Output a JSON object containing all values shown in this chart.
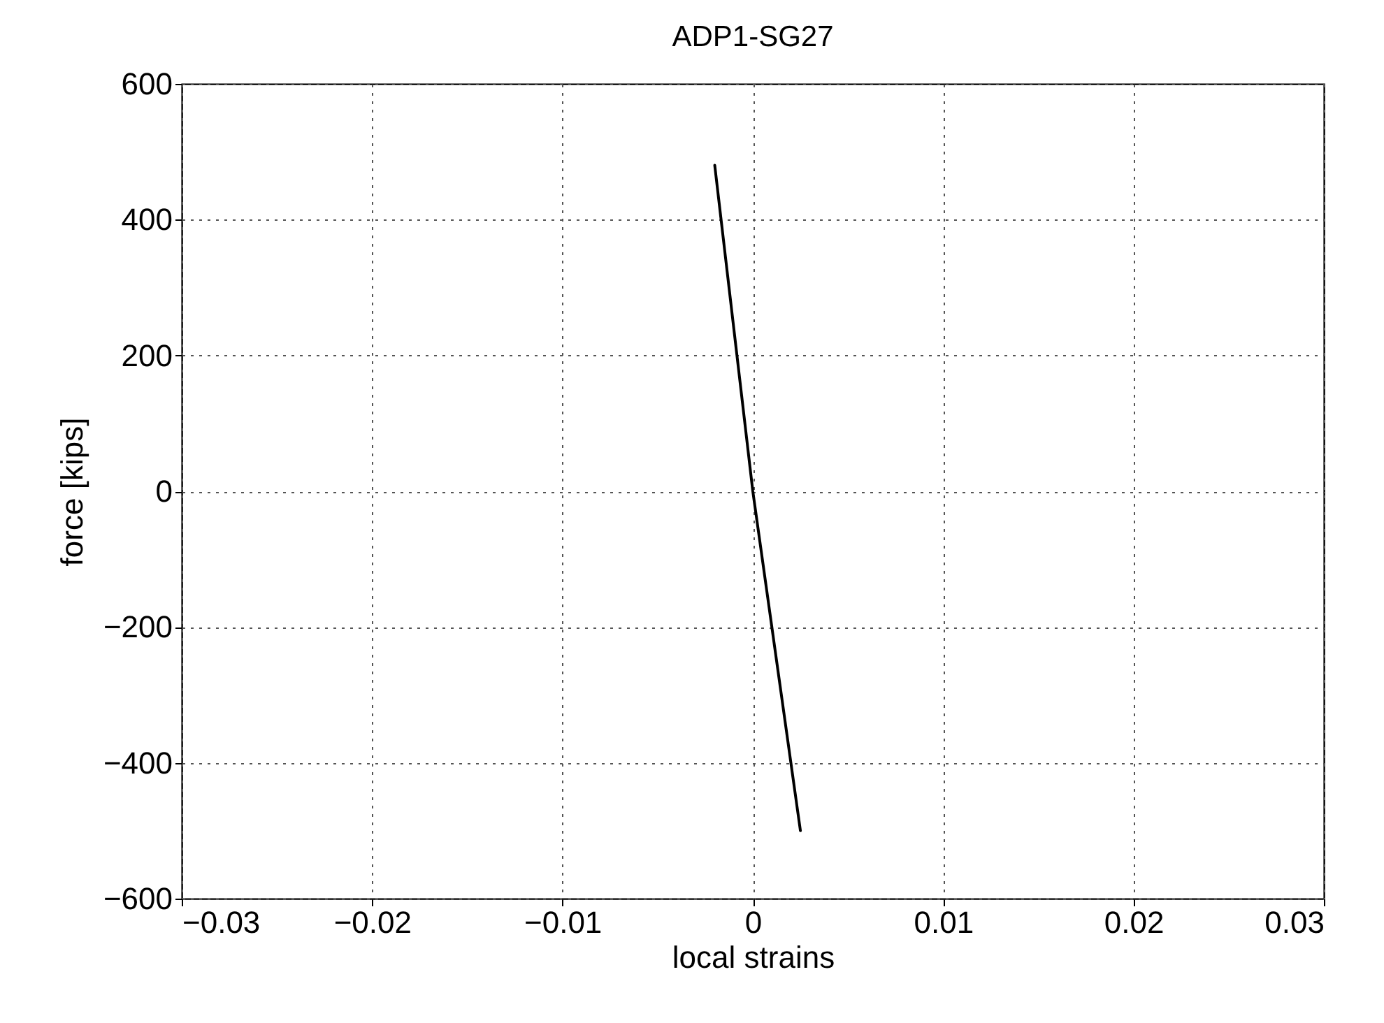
{
  "chart_data": {
    "type": "line",
    "title": "ADP1-SG27",
    "xlabel": "local strains",
    "ylabel": "force [kips]",
    "x": [
      -0.002,
      0,
      0.0025
    ],
    "series": [
      {
        "color": "#000000",
        "values": [
          480,
          0,
          -500
        ]
      }
    ],
    "xlim": [
      -0.03,
      0.03
    ],
    "xticks": [
      -0.03,
      -0.02,
      -0.01,
      0,
      0.01,
      0.02,
      0.03
    ],
    "ylim": [
      -600,
      600
    ],
    "yticks": [
      -600,
      -400,
      -200,
      0,
      200,
      400,
      600
    ],
    "grid": true,
    "line_style": "solid",
    "marker": "none"
  }
}
